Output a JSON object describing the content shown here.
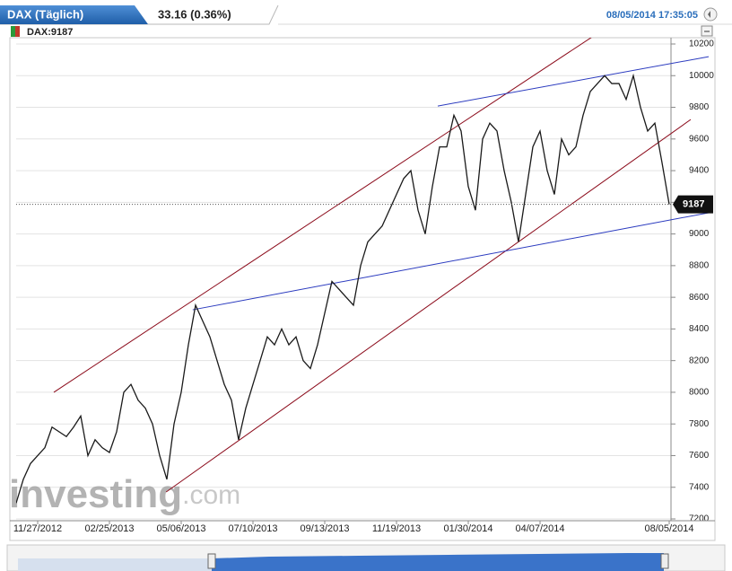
{
  "header": {
    "tab": "DAX (Täglich)",
    "change": "33.16 (0.36%)",
    "timestamp": "08/05/2014 17:35:05",
    "symbol": "DAX:9187"
  },
  "chart_data": {
    "type": "line",
    "color": "#1a1a1a",
    "values": [
      7300,
      7450,
      7550,
      7600,
      7650,
      7780,
      7750,
      7720,
      7780,
      7850,
      7600,
      7700,
      7650,
      7620,
      7750,
      8000,
      8050,
      7950,
      7900,
      7800,
      7600,
      7450,
      7800,
      8000,
      8300,
      8550,
      8450,
      8350,
      8200,
      8050,
      7950,
      7700,
      7900,
      8050,
      8200,
      8350,
      8300,
      8400,
      8300,
      8350,
      8200,
      8150,
      8300,
      8500,
      8700,
      8650,
      8600,
      8550,
      8800,
      8950,
      9000,
      9050,
      9150,
      9250,
      9350,
      9400,
      9150,
      9000,
      9300,
      9550,
      9550,
      9750,
      9650,
      9300,
      9150,
      9600,
      9700,
      9650,
      9400,
      9200,
      8950,
      9250,
      9550,
      9650,
      9400,
      9250,
      9600,
      9500,
      9550,
      9750,
      9900,
      9950,
      10000,
      9950,
      9950,
      9850,
      10000,
      9800,
      9650,
      9700,
      9450,
      9187
    ],
    "xlim": [
      0,
      91.5
    ],
    "xticks": [
      {
        "value": 3,
        "label": "11/27/2012"
      },
      {
        "value": 13,
        "label": "02/25/2013"
      },
      {
        "value": 23,
        "label": "05/06/2013"
      },
      {
        "value": 33,
        "label": "07/10/2013"
      },
      {
        "value": 43,
        "label": "09/13/2013"
      },
      {
        "value": 53,
        "label": "11/19/2013"
      },
      {
        "value": 63,
        "label": "01/30/2014"
      },
      {
        "value": 73,
        "label": "04/07/2014"
      },
      {
        "value": 91,
        "label": "08/05/2014"
      }
    ],
    "ylim": [
      7200,
      10200
    ],
    "yticks": [
      7200,
      7400,
      7600,
      7800,
      8000,
      8200,
      8400,
      8600,
      8800,
      9000,
      9200,
      9400,
      9600,
      9800,
      10000,
      10200
    ],
    "grid": true,
    "last_price": 9187,
    "trendlines": [
      {
        "color": "#8b0a1a",
        "from": [
          5.25,
          8000
        ],
        "to": [
          82.75,
          10319
        ]
      },
      {
        "color": "#8b0a1a",
        "from": [
          20.9,
          7370
        ],
        "to": [
          94,
          9723
        ]
      },
      {
        "color": "#2b3bbf",
        "from": [
          58.75,
          9808
        ],
        "to": [
          96.5,
          10120
        ]
      },
      {
        "color": "#2b3bbf",
        "from": [
          24.6,
          8521
        ],
        "to": [
          96.5,
          9134
        ]
      }
    ],
    "watermark": {
      "main": "investing",
      "suffix": ".com"
    }
  }
}
